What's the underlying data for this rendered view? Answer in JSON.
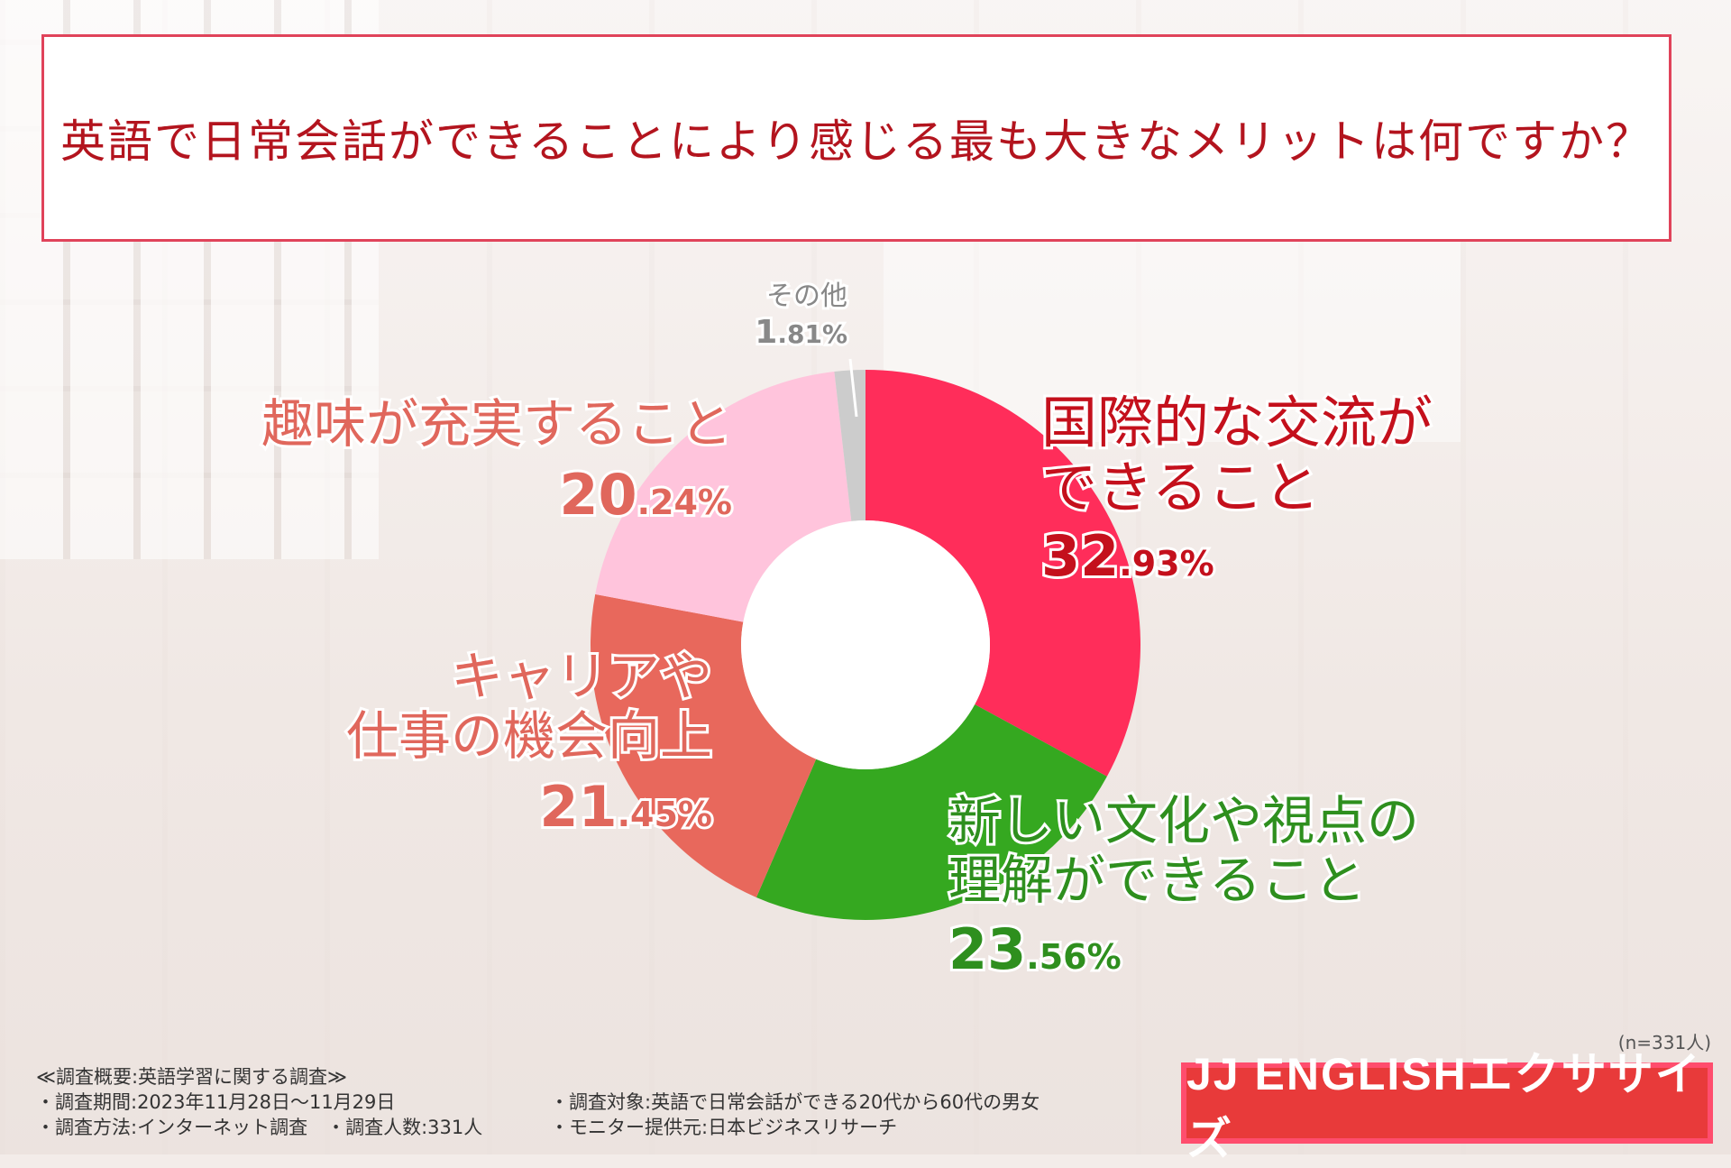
{
  "title": "英語で日常会話ができることにより感じる最も大きなメリットは何ですか？",
  "sample_size": "(n=331人)",
  "footer": {
    "heading": "≪調査概要:英語学習に関する調査≫",
    "period": "・調査期間:2023年11月28日〜11月29日",
    "method": "・調査方法:インターネット調査　・調査人数:331人",
    "target": "・調査対象:英語で日常会話ができる20代から60代の男女",
    "provider": "・モニター提供元:日本ビジネスリサーチ"
  },
  "logo": "JJ ENGLISHエクササイズ",
  "chart_data": {
    "type": "pie",
    "variant": "donut",
    "unit": "%",
    "slices": [
      {
        "label_lines": [
          "国際的な交流が",
          "できること"
        ],
        "value": 32.93,
        "int": "32",
        "dec": ".93%",
        "color": "#ff2d5a",
        "label_color": "#c4101c"
      },
      {
        "label_lines": [
          "新しい文化や視点の",
          "理解ができること"
        ],
        "value": 23.56,
        "int": "23",
        "dec": ".56%",
        "color": "#35a820",
        "label_color": "#2e8f1e"
      },
      {
        "label_lines": [
          "キャリアや",
          "仕事の機会向上"
        ],
        "value": 21.45,
        "int": "21",
        "dec": ".45%",
        "color": "#e8685c",
        "label_color": "#e0675c"
      },
      {
        "label_lines": [
          "趣味が充実すること"
        ],
        "value": 20.24,
        "int": "20",
        "dec": ".24%",
        "color": "#ffc4dc",
        "label_color": "#e0675c"
      },
      {
        "label_lines": [
          "その他"
        ],
        "value": 1.81,
        "int": "1",
        "dec": ".81%",
        "color": "#cccccc",
        "label_color": "#888888"
      }
    ]
  }
}
